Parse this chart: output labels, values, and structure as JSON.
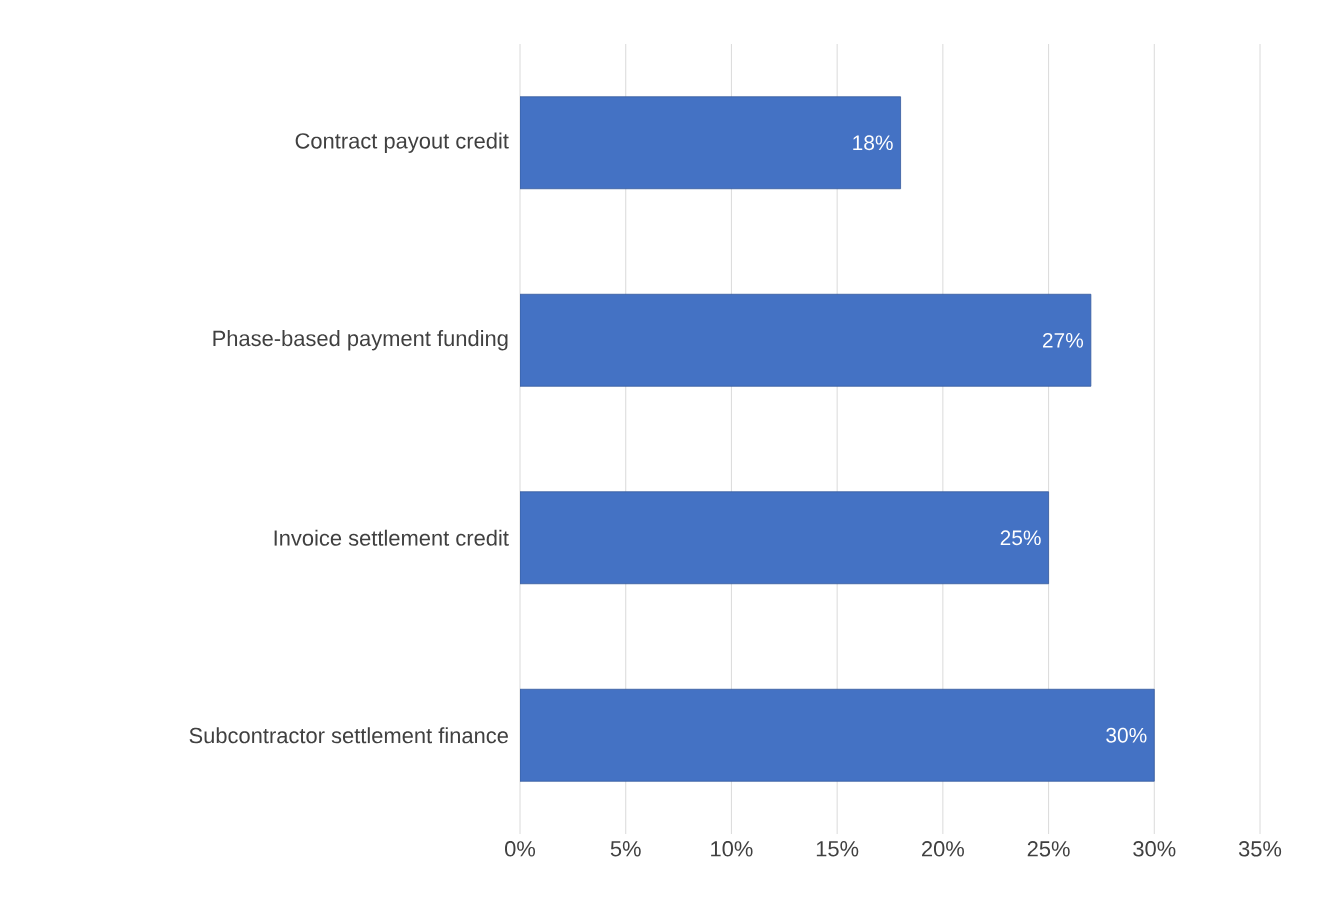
{
  "chart_data": {
    "type": "bar",
    "orientation": "horizontal",
    "categories": [
      "Contract payout credit",
      "Phase-based payment funding",
      "Invoice settlement credit",
      "Subcontractor settlement finance"
    ],
    "values": [
      18,
      27,
      25,
      30
    ],
    "value_labels": [
      "18%",
      "27%",
      "25%",
      "30%"
    ],
    "color": "#4472c4",
    "xlim": [
      0,
      35
    ],
    "xticks": [
      {
        "value": 0,
        "label": "0%"
      },
      {
        "value": 5,
        "label": "5%"
      },
      {
        "value": 10,
        "label": "10%"
      },
      {
        "value": 15,
        "label": "15%"
      },
      {
        "value": 20,
        "label": "20%"
      },
      {
        "value": 25,
        "label": "25%"
      },
      {
        "value": 30,
        "label": "30%"
      },
      {
        "value": 35,
        "label": "35%"
      }
    ],
    "grid": "x"
  }
}
